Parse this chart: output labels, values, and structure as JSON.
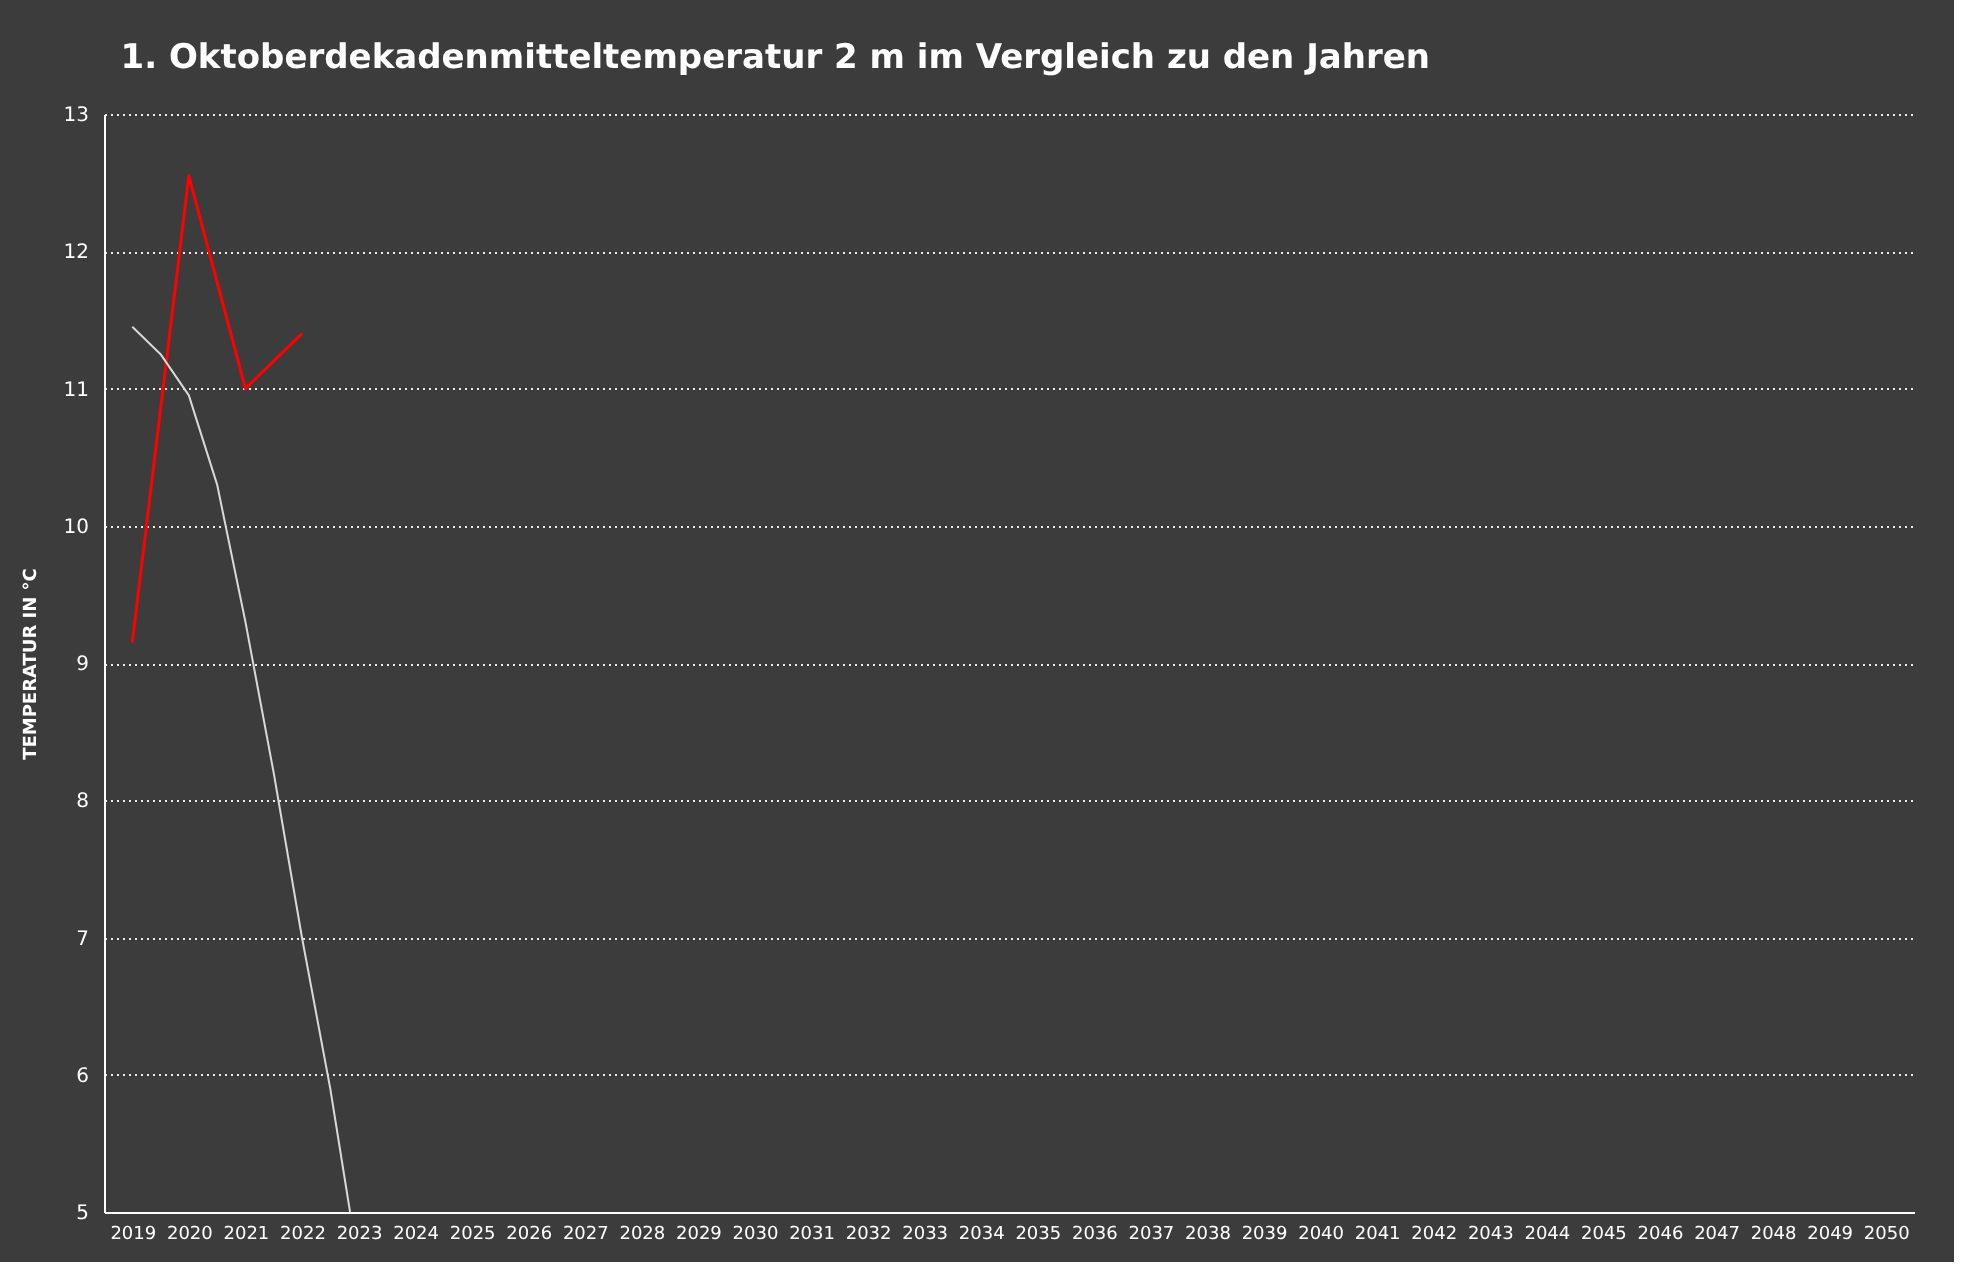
{
  "chart_data": {
    "type": "line",
    "title": "1. Oktoberdekadenmitteltemperatur  2 m im Vergleich  zu den Jahren",
    "ylabel": "TEMPERATUR IN °C",
    "xlim": [
      2018.5,
      2050.5
    ],
    "xticks": [
      2019,
      2020,
      2021,
      2022,
      2023,
      2024,
      2025,
      2026,
      2027,
      2028,
      2029,
      2030,
      2031,
      2032,
      2033,
      2034,
      2035,
      2036,
      2037,
      2038,
      2039,
      2040,
      2041,
      2042,
      2043,
      2044,
      2045,
      2046,
      2047,
      2048,
      2049,
      2050
    ],
    "ylim": [
      5,
      13
    ],
    "yticks": [
      5,
      6,
      7,
      8,
      9,
      10,
      11,
      12,
      13
    ],
    "grid": "y",
    "marker": "none",
    "line_style": "solid",
    "series": [
      {
        "color": "#ff0000",
        "x": [
          2019,
          2020,
          2021,
          2022
        ],
        "values": [
          9.15,
          12.55,
          11.0,
          11.4
        ]
      },
      {
        "color": "#d9d9d9",
        "x": [
          2019,
          2019.5,
          2020,
          2020.5,
          2021,
          2021.5,
          2022,
          2022.5,
          2022.85
        ],
        "values": [
          11.45,
          11.25,
          10.95,
          10.3,
          9.3,
          8.2,
          7.0,
          5.9,
          5.0
        ]
      }
    ]
  }
}
